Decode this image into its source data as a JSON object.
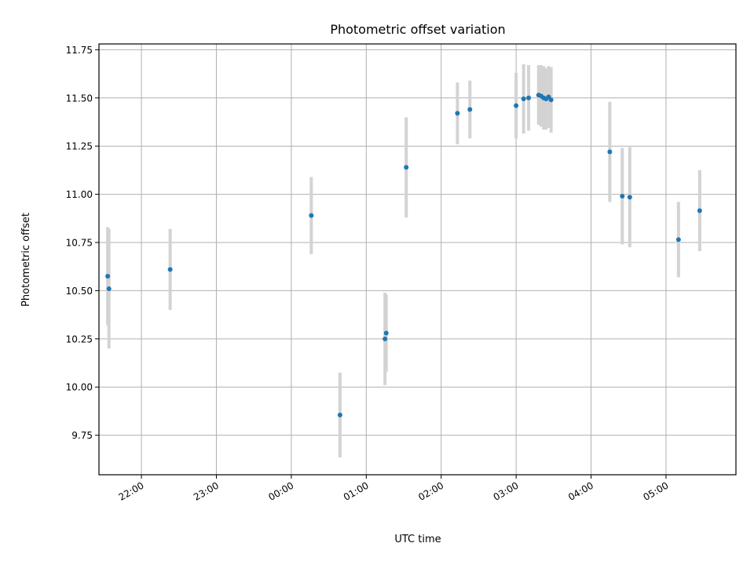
{
  "chart_data": {
    "type": "scatter",
    "title": "Photometric offset variation",
    "xlabel": "UTC time",
    "ylabel": "Photometric offset",
    "xlim": [
      "21:26",
      "05:56"
    ],
    "ylim": [
      9.545,
      11.78
    ],
    "grid": true,
    "x_ticks": [
      "22:00",
      "23:00",
      "00:00",
      "01:00",
      "02:00",
      "03:00",
      "04:00",
      "05:00"
    ],
    "y_ticks": [
      "9.75",
      "10.00",
      "10.25",
      "10.50",
      "10.75",
      "11.00",
      "11.25",
      "11.50",
      "11.75"
    ],
    "colors": {
      "marker": "#1f77b4",
      "errorbar": "#d3d3d3",
      "grid": "#b0b0b0"
    },
    "points": [
      {
        "time": "21:33",
        "y": 10.575,
        "err": 0.255
      },
      {
        "time": "21:34",
        "y": 10.51,
        "err": 0.31
      },
      {
        "time": "22:23",
        "y": 10.61,
        "err": 0.21
      },
      {
        "time": "00:16",
        "y": 10.89,
        "err": 0.2
      },
      {
        "time": "00:39",
        "y": 9.855,
        "err": 0.22
      },
      {
        "time": "01:15",
        "y": 10.25,
        "err": 0.24
      },
      {
        "time": "01:16",
        "y": 10.28,
        "err": 0.2
      },
      {
        "time": "01:32",
        "y": 11.14,
        "err": 0.26
      },
      {
        "time": "02:13",
        "y": 11.42,
        "err": 0.16
      },
      {
        "time": "02:23",
        "y": 11.44,
        "err": 0.15
      },
      {
        "time": "03:00",
        "y": 11.46,
        "err": 0.17
      },
      {
        "time": "03:06",
        "y": 11.495,
        "err": 0.18
      },
      {
        "time": "03:10",
        "y": 11.5,
        "err": 0.17
      },
      {
        "time": "03:18",
        "y": 11.515,
        "err": 0.155
      },
      {
        "time": "03:20",
        "y": 11.51,
        "err": 0.16
      },
      {
        "time": "03:22",
        "y": 11.5,
        "err": 0.165
      },
      {
        "time": "03:24",
        "y": 11.495,
        "err": 0.16
      },
      {
        "time": "03:26",
        "y": 11.505,
        "err": 0.16
      },
      {
        "time": "03:28",
        "y": 11.49,
        "err": 0.17
      },
      {
        "time": "04:15",
        "y": 11.22,
        "err": 0.26
      },
      {
        "time": "04:25",
        "y": 10.99,
        "err": 0.25
      },
      {
        "time": "04:31",
        "y": 10.985,
        "err": 0.26
      },
      {
        "time": "05:10",
        "y": 10.765,
        "err": 0.195
      },
      {
        "time": "05:27",
        "y": 10.915,
        "err": 0.21
      }
    ]
  }
}
